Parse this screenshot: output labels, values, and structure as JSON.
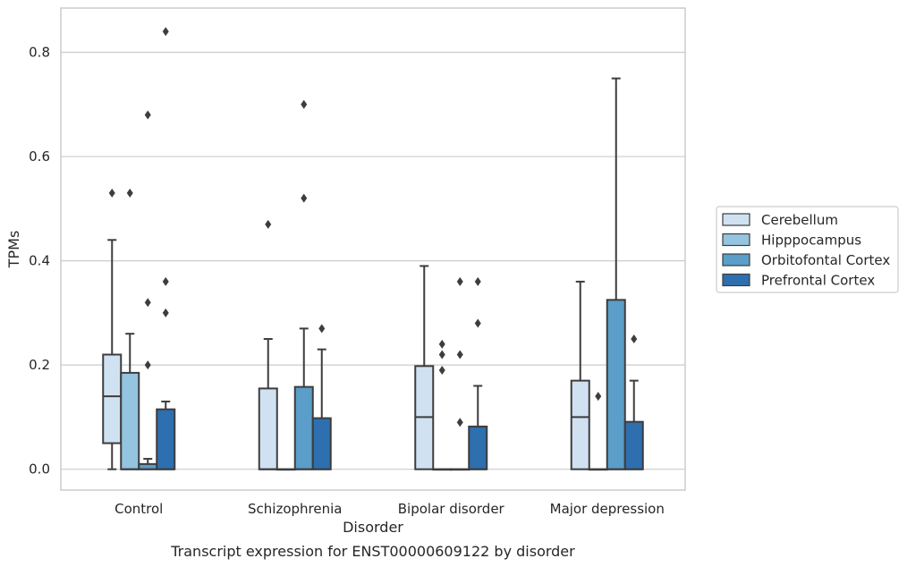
{
  "caption": "Transcript expression for ENST00000609122 by disorder",
  "chart_data": {
    "type": "box",
    "title": "",
    "xlabel": "Disorder",
    "ylabel": "TPMs",
    "ylim": [
      -0.04,
      0.885
    ],
    "yticks": [
      0.0,
      0.2,
      0.4,
      0.6,
      0.8
    ],
    "ytick_labels": [
      "0.0",
      "0.2",
      "0.4",
      "0.6",
      "0.8"
    ],
    "grid": "horizontal",
    "legend_position": "right",
    "categories": [
      "Control",
      "Schizophrenia",
      "Bipolar disorder",
      "Major depression"
    ],
    "series": [
      {
        "name": "Cerebellum",
        "color": "#d0e1f2",
        "boxes": [
          {
            "q1": 0.05,
            "median": 0.14,
            "q3": 0.22,
            "whisker_low": 0.0,
            "whisker_high": 0.44,
            "outliers": [
              0.53
            ]
          },
          {
            "q1": 0.0,
            "median": 0.0,
            "q3": 0.155,
            "whisker_low": 0.0,
            "whisker_high": 0.25,
            "outliers": [
              0.47
            ]
          },
          {
            "q1": 0.0,
            "median": 0.1,
            "q3": 0.198,
            "whisker_low": 0.0,
            "whisker_high": 0.39,
            "outliers": []
          },
          {
            "q1": 0.0,
            "median": 0.1,
            "q3": 0.17,
            "whisker_low": 0.0,
            "whisker_high": 0.36,
            "outliers": []
          }
        ]
      },
      {
        "name": "Hipppocampus",
        "color": "#94c4df",
        "boxes": [
          {
            "q1": 0.0,
            "median": 0.0,
            "q3": 0.185,
            "whisker_low": 0.0,
            "whisker_high": 0.26,
            "outliers": [
              0.53
            ]
          },
          {
            "q1": 0.0,
            "median": 0.0,
            "q3": 0.0,
            "whisker_low": 0.0,
            "whisker_high": 0.0,
            "outliers": []
          },
          {
            "q1": 0.0,
            "median": 0.0,
            "q3": 0.0,
            "whisker_low": 0.0,
            "whisker_high": 0.0,
            "outliers": [
              0.24,
              0.22,
              0.19
            ]
          },
          {
            "q1": 0.0,
            "median": 0.0,
            "q3": 0.0,
            "whisker_low": 0.0,
            "whisker_high": 0.0,
            "outliers": [
              0.14
            ]
          }
        ]
      },
      {
        "name": "Orbitofontal Cortex",
        "color": "#5a9ec9",
        "boxes": [
          {
            "q1": 0.0,
            "median": 0.0,
            "q3": 0.01,
            "whisker_low": 0.0,
            "whisker_high": 0.02,
            "outliers": [
              0.68,
              0.32,
              0.2
            ]
          },
          {
            "q1": 0.0,
            "median": 0.0,
            "q3": 0.158,
            "whisker_low": 0.0,
            "whisker_high": 0.27,
            "outliers": [
              0.7,
              0.52
            ]
          },
          {
            "q1": 0.0,
            "median": 0.0,
            "q3": 0.0,
            "whisker_low": 0.0,
            "whisker_high": 0.0,
            "outliers": [
              0.36,
              0.22,
              0.09
            ]
          },
          {
            "q1": 0.0,
            "median": 0.0,
            "q3": 0.325,
            "whisker_low": 0.0,
            "whisker_high": 0.75,
            "outliers": []
          }
        ]
      },
      {
        "name": "Prefrontal Cortex",
        "color": "#2d6faf",
        "boxes": [
          {
            "q1": 0.0,
            "median": 0.0,
            "q3": 0.115,
            "whisker_low": 0.0,
            "whisker_high": 0.13,
            "outliers": [
              0.84,
              0.36,
              0.3
            ]
          },
          {
            "q1": 0.0,
            "median": 0.0,
            "q3": 0.098,
            "whisker_low": 0.0,
            "whisker_high": 0.23,
            "outliers": [
              0.27
            ]
          },
          {
            "q1": 0.0,
            "median": 0.0,
            "q3": 0.082,
            "whisker_low": 0.0,
            "whisker_high": 0.16,
            "outliers": [
              0.36,
              0.28
            ]
          },
          {
            "q1": 0.0,
            "median": 0.0,
            "q3": 0.091,
            "whisker_low": 0.0,
            "whisker_high": 0.17,
            "outliers": [
              0.25
            ]
          }
        ]
      }
    ]
  }
}
